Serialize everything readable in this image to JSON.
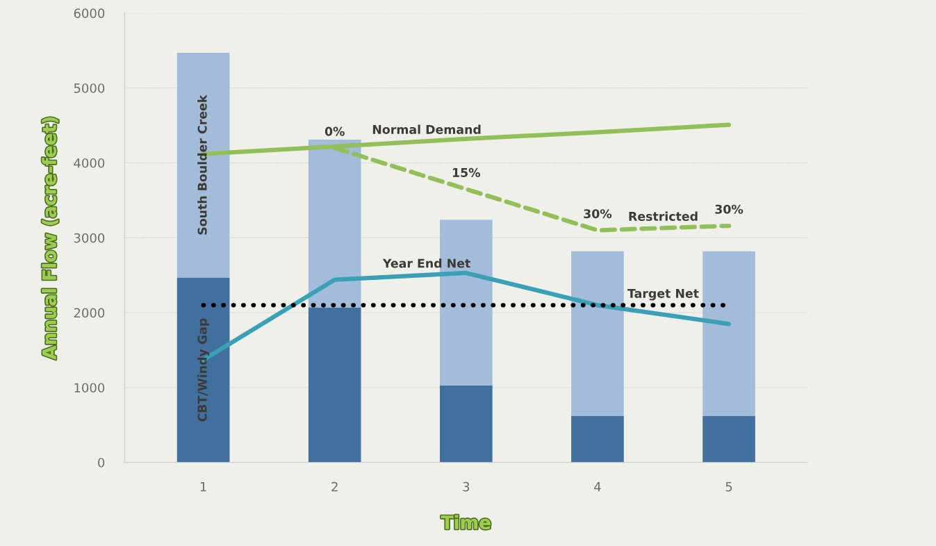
{
  "chart_data": {
    "type": "bar",
    "stacked": true,
    "xlabel": "Time",
    "ylabel": "Annual Flow (acre-feet)",
    "categories": [
      "1",
      "2",
      "3",
      "4",
      "5"
    ],
    "series": [
      {
        "name": "CBT/Windy Gap",
        "color": "#41709f",
        "values": [
          2470,
          2070,
          1030,
          620,
          620
        ]
      },
      {
        "name": "South Boulder Creek",
        "color": "#a2bcda",
        "values": [
          3000,
          2240,
          2210,
          2200,
          2200
        ]
      },
      {
        "name": "Normal Demand",
        "type": "line",
        "line_style": "solid",
        "color": "#93bf5a",
        "values": [
          4120,
          4220,
          4320,
          4410,
          4510
        ]
      },
      {
        "name": "Restricted",
        "type": "line",
        "line_style": "dashed",
        "color": "#93bf5a",
        "values": [
          null,
          4200,
          3650,
          3100,
          3160
        ]
      },
      {
        "name": "Year End Net",
        "type": "line",
        "line_style": "solid",
        "color": "#3aa0b5",
        "values": [
          1370,
          2440,
          2530,
          2100,
          1850
        ]
      },
      {
        "name": "Target Net",
        "type": "line",
        "line_style": "dotted",
        "color": "#000000",
        "values": [
          2100,
          2100,
          2100,
          2100,
          2100
        ]
      }
    ],
    "annotations": [
      {
        "text": "0%",
        "x": "2",
        "y": 4200
      },
      {
        "text": "15%",
        "x": "3",
        "y": 3650
      },
      {
        "text": "30%",
        "x": "4",
        "y": 3100
      },
      {
        "text": "30%",
        "x": "5",
        "y": 3160
      }
    ],
    "ylim": [
      0,
      6000
    ],
    "yticks": [
      0,
      1000,
      2000,
      3000,
      4000,
      5000,
      6000
    ],
    "grid": "y",
    "legend": false,
    "marker": "none"
  }
}
